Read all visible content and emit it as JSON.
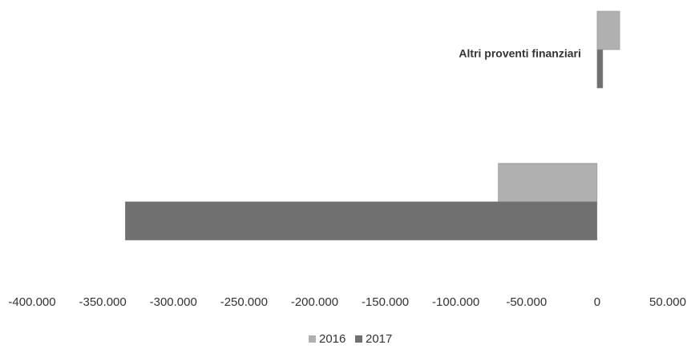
{
  "chart_data": {
    "type": "hbar",
    "categories": [
      "Altri proventi finanziari",
      null
    ],
    "series": [
      {
        "name": "2016",
        "color": "#b0b0b0",
        "values": [
          16000,
          -70000
        ]
      },
      {
        "name": "2017",
        "color": "#707070",
        "values": [
          4000,
          -334000
        ]
      }
    ],
    "xlim": [
      -400000,
      50000
    ],
    "xticks": [
      {
        "value": -400000,
        "label": "-400.000"
      },
      {
        "value": -350000,
        "label": "-350.000"
      },
      {
        "value": -300000,
        "label": "-300.000"
      },
      {
        "value": -250000,
        "label": "-250.000"
      },
      {
        "value": -200000,
        "label": "-200.000"
      },
      {
        "value": -150000,
        "label": "-150.000"
      },
      {
        "value": -100000,
        "label": "-100.000"
      },
      {
        "value": -50000,
        "label": "-50.000"
      },
      0,
      {
        "value": 50000,
        "label": "50.000"
      }
    ],
    "legend": "bottom"
  }
}
